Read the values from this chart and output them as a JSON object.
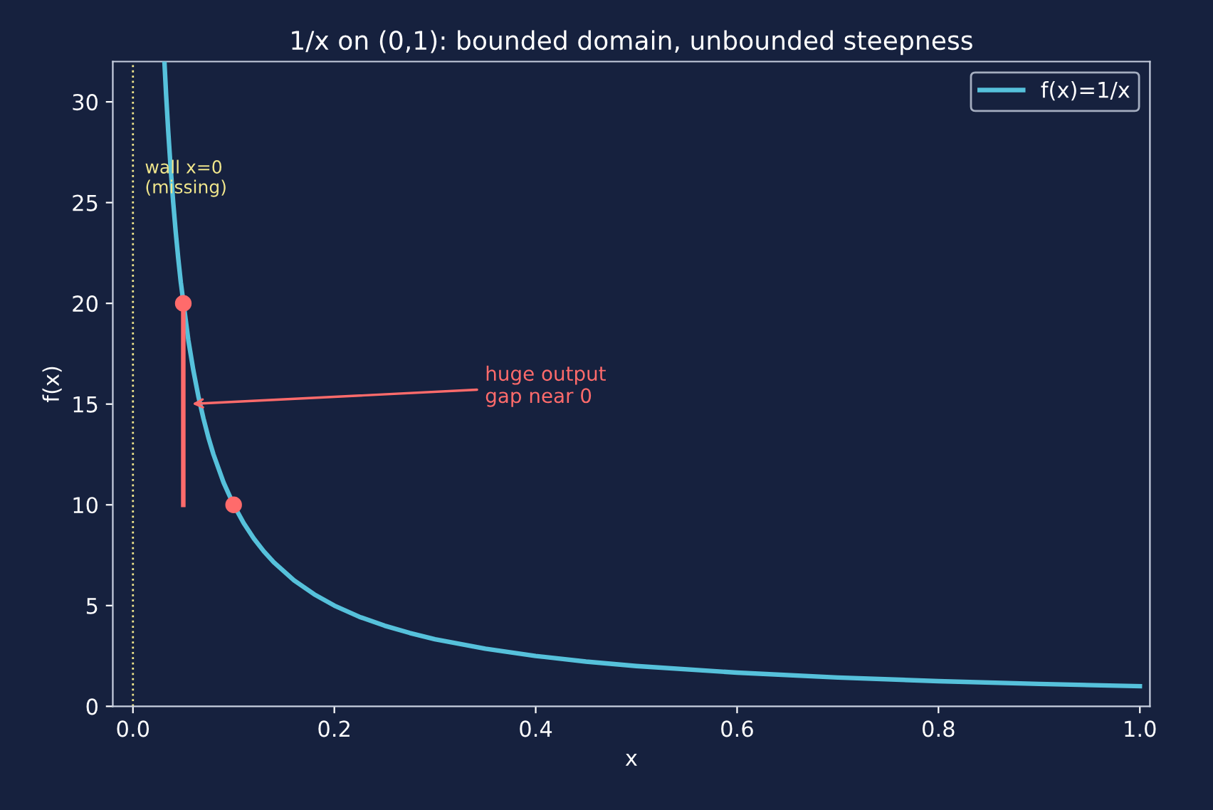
{
  "chart_data": {
    "type": "line",
    "title": "1/x on (0,1): bounded domain, unbounded steepness",
    "xlabel": "x",
    "ylabel": "f(x)",
    "series": [
      {
        "name": "f(x)=1/x",
        "color": "#56c1db",
        "x": [
          0.03125,
          0.033,
          0.035,
          0.0375,
          0.04,
          0.0425,
          0.045,
          0.0475,
          0.055,
          0.06,
          0.065,
          0.07,
          0.075,
          0.08,
          0.09,
          0.1,
          0.11,
          0.12,
          0.13,
          0.14,
          0.16,
          0.18,
          0.2,
          0.225,
          0.25,
          0.275,
          0.3,
          0.35,
          0.4,
          0.45,
          0.5,
          0.6,
          0.7,
          0.8,
          0.9,
          1.0
        ],
        "values": [
          32.0,
          30.3,
          28.57,
          26.67,
          25.0,
          23.53,
          22.22,
          21.05,
          18.18,
          16.67,
          15.38,
          14.29,
          13.33,
          12.5,
          11.11,
          10.0,
          9.09,
          8.33,
          7.69,
          7.14,
          6.25,
          5.56,
          5.0,
          4.44,
          4.0,
          3.64,
          3.33,
          2.86,
          2.5,
          2.22,
          2.0,
          1.67,
          1.43,
          1.25,
          1.11,
          1.0
        ]
      },
      {
        "type": "line",
        "color": "#ff6b6b",
        "x": [
          0.05,
          0.05
        ],
        "values": [
          10,
          20
        ]
      },
      {
        "type": "scatter",
        "color": "#ff6b6b",
        "marker": "circle",
        "x": [
          0.05,
          0.1
        ],
        "values": [
          20,
          10
        ]
      }
    ],
    "annotations": [
      {
        "text": "huge output\ngap near 0",
        "x": 0.055,
        "y": 15
      }
    ],
    "ref_lines": [
      {
        "axis": "x",
        "value": 0,
        "label": "wall x=0\n(missing)",
        "color": "#f0e68c",
        "line_style": "dotted"
      }
    ],
    "xlim": [
      -0.02,
      1.01
    ],
    "ylim": [
      0,
      32
    ],
    "xticks": [
      {
        "value": 0,
        "label": "0.0"
      },
      0.2,
      0.4,
      0.6,
      0.8,
      {
        "value": 1,
        "label": "1.0"
      }
    ],
    "yticks": [
      0,
      5,
      10,
      15,
      20,
      25,
      30
    ],
    "legend": "top right",
    "grid": false
  }
}
